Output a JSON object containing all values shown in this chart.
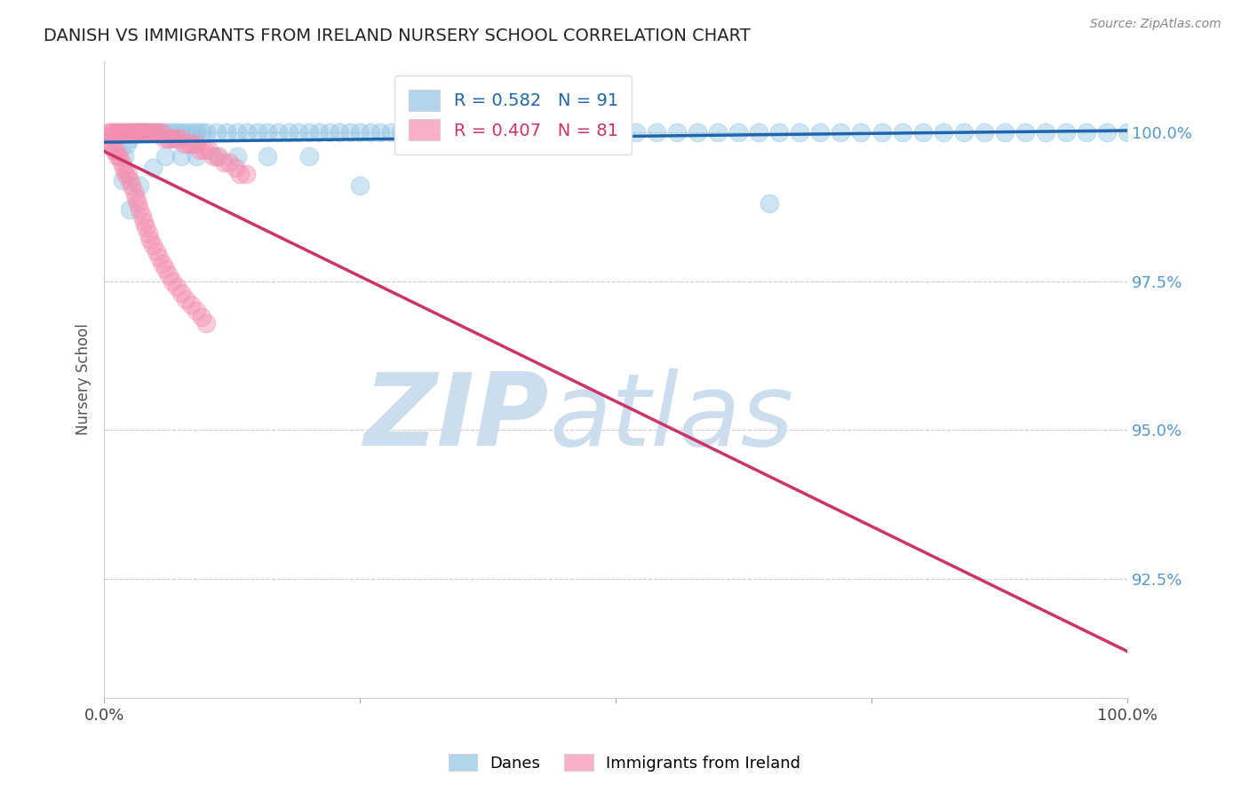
{
  "title": "DANISH VS IMMIGRANTS FROM IRELAND NURSERY SCHOOL CORRELATION CHART",
  "source": "Source: ZipAtlas.com",
  "ylabel": "Nursery School",
  "ytick_labels": [
    "92.5%",
    "95.0%",
    "97.5%",
    "100.0%"
  ],
  "ytick_values": [
    0.925,
    0.95,
    0.975,
    1.0
  ],
  "xlim": [
    0.0,
    1.0
  ],
  "ylim": [
    0.905,
    1.012
  ],
  "legend_blue_r": "R = 0.582",
  "legend_blue_n": "N = 91",
  "legend_pink_r": "R = 0.407",
  "legend_pink_n": "N = 81",
  "legend_label_blue": "Danes",
  "legend_label_pink": "Immigrants from Ireland",
  "blue_color": "#90c4e4",
  "pink_color": "#f48fb1",
  "blue_line_color": "#2166ac",
  "pink_line_color": "#cc3366",
  "background_color": "#ffffff",
  "watermark_color": "#ccdded",
  "tick_color": "#5599cc",
  "blue_dots_x": [
    0.018,
    0.02,
    0.022,
    0.025,
    0.028,
    0.03,
    0.032,
    0.035,
    0.038,
    0.04,
    0.042,
    0.045,
    0.048,
    0.05,
    0.055,
    0.06,
    0.065,
    0.07,
    0.075,
    0.08,
    0.085,
    0.09,
    0.095,
    0.1,
    0.11,
    0.12,
    0.13,
    0.14,
    0.15,
    0.16,
    0.17,
    0.18,
    0.19,
    0.2,
    0.21,
    0.22,
    0.23,
    0.24,
    0.25,
    0.26,
    0.27,
    0.28,
    0.29,
    0.3,
    0.32,
    0.34,
    0.36,
    0.38,
    0.4,
    0.42,
    0.44,
    0.46,
    0.48,
    0.5,
    0.52,
    0.54,
    0.56,
    0.58,
    0.6,
    0.62,
    0.64,
    0.66,
    0.68,
    0.7,
    0.72,
    0.74,
    0.76,
    0.78,
    0.8,
    0.82,
    0.84,
    0.86,
    0.88,
    0.9,
    0.92,
    0.94,
    0.96,
    0.98,
    1.0,
    0.025,
    0.035,
    0.048,
    0.06,
    0.075,
    0.09,
    0.11,
    0.13,
    0.16,
    0.2,
    0.25,
    0.65
  ],
  "blue_dots_y": [
    0.992,
    0.996,
    0.998,
    0.999,
    1.0,
    1.0,
    1.0,
    1.0,
    1.0,
    1.0,
    1.0,
    1.0,
    1.0,
    1.0,
    1.0,
    1.0,
    1.0,
    1.0,
    1.0,
    1.0,
    1.0,
    1.0,
    1.0,
    1.0,
    1.0,
    1.0,
    1.0,
    1.0,
    1.0,
    1.0,
    1.0,
    1.0,
    1.0,
    1.0,
    1.0,
    1.0,
    1.0,
    1.0,
    1.0,
    1.0,
    1.0,
    1.0,
    1.0,
    1.0,
    1.0,
    1.0,
    1.0,
    1.0,
    1.0,
    1.0,
    1.0,
    1.0,
    1.0,
    1.0,
    1.0,
    1.0,
    1.0,
    1.0,
    1.0,
    1.0,
    1.0,
    1.0,
    1.0,
    1.0,
    1.0,
    1.0,
    1.0,
    1.0,
    1.0,
    1.0,
    1.0,
    1.0,
    1.0,
    1.0,
    1.0,
    1.0,
    1.0,
    1.0,
    1.0,
    0.987,
    0.991,
    0.994,
    0.996,
    0.996,
    0.996,
    0.996,
    0.996,
    0.996,
    0.996,
    0.991,
    0.988
  ],
  "pink_dots_x": [
    0.004,
    0.006,
    0.008,
    0.01,
    0.012,
    0.014,
    0.016,
    0.018,
    0.02,
    0.022,
    0.024,
    0.026,
    0.028,
    0.03,
    0.032,
    0.034,
    0.036,
    0.038,
    0.04,
    0.042,
    0.045,
    0.048,
    0.05,
    0.053,
    0.056,
    0.059,
    0.062,
    0.065,
    0.068,
    0.072,
    0.075,
    0.078,
    0.082,
    0.086,
    0.09,
    0.094,
    0.098,
    0.102,
    0.107,
    0.112,
    0.117,
    0.122,
    0.128,
    0.133,
    0.139,
    0.003,
    0.005,
    0.007,
    0.009,
    0.011,
    0.013,
    0.015,
    0.017,
    0.019,
    0.021,
    0.023,
    0.025,
    0.027,
    0.029,
    0.031,
    0.033,
    0.035,
    0.037,
    0.039,
    0.041,
    0.043,
    0.045,
    0.048,
    0.051,
    0.054,
    0.057,
    0.06,
    0.063,
    0.067,
    0.071,
    0.075,
    0.08,
    0.085,
    0.09,
    0.095,
    0.1
  ],
  "pink_dots_y": [
    1.0,
    1.0,
    1.0,
    1.0,
    1.0,
    1.0,
    1.0,
    1.0,
    1.0,
    1.0,
    1.0,
    1.0,
    1.0,
    1.0,
    1.0,
    1.0,
    1.0,
    1.0,
    1.0,
    1.0,
    1.0,
    1.0,
    1.0,
    1.0,
    1.0,
    0.999,
    0.999,
    0.999,
    0.999,
    0.999,
    0.999,
    0.998,
    0.998,
    0.998,
    0.998,
    0.997,
    0.997,
    0.997,
    0.996,
    0.996,
    0.995,
    0.995,
    0.994,
    0.993,
    0.993,
    0.999,
    0.998,
    0.998,
    0.997,
    0.997,
    0.996,
    0.996,
    0.995,
    0.994,
    0.993,
    0.993,
    0.992,
    0.991,
    0.99,
    0.989,
    0.988,
    0.987,
    0.986,
    0.985,
    0.984,
    0.983,
    0.982,
    0.981,
    0.98,
    0.979,
    0.978,
    0.977,
    0.976,
    0.975,
    0.974,
    0.973,
    0.972,
    0.971,
    0.97,
    0.969,
    0.968
  ]
}
